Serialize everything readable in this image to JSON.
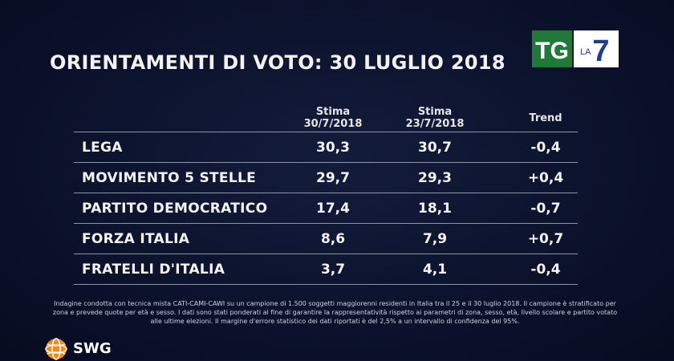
{
  "logo": {
    "tg": "TG",
    "la": "LA",
    "seven": "7"
  },
  "title": "ORIENTAMENTI DI VOTO: 30 LUGLIO 2018",
  "chart_data": {
    "type": "table",
    "title": "ORIENTAMENTI DI VOTO: 30 LUGLIO 2018",
    "columns": [
      {
        "line1": "Stima",
        "line2": "30/7/2018"
      },
      {
        "line1": "Stima",
        "line2": "23/7/2018"
      },
      {
        "line1": "Trend",
        "line2": ""
      }
    ],
    "rows": [
      {
        "party": "LEGA",
        "v1": "30,3",
        "v2": "30,7",
        "trend": "-0,4"
      },
      {
        "party": "MOVIMENTO 5 STELLE",
        "v1": "29,7",
        "v2": "29,3",
        "trend": "+0,4"
      },
      {
        "party": "PARTITO DEMOCRATICO",
        "v1": "17,4",
        "v2": "18,1",
        "trend": "-0,7"
      },
      {
        "party": "FORZA ITALIA",
        "v1": "8,6",
        "v2": "7,9",
        "trend": "+0,7"
      },
      {
        "party": "FRATELLI D'ITALIA",
        "v1": "3,7",
        "v2": "4,1",
        "trend": "-0,4"
      }
    ]
  },
  "note": "Indagine condotta con tecnica mista CATI-CAMI-CAWI su un campione di 1.500 soggetti maggiorenni residenti in Italia tra il 25 e il 30 luglio 2018. Il campione è stratificato per zona e prevede quote per età e sesso. I dati sono stati ponderati al fine di garantire la rappresentatività rispetto ai parametri di zona, sesso, età, livello scolare e partito votato alle ultime elezioni. Il margine d'errore statistico dei dati riportati è del 2,5% a un intervallo di confidenza del 95%.",
  "brand": "SWG",
  "colors": {
    "background": "#0a1029",
    "tg_green": "#1f7a3a",
    "la7_blue": "#1b3f8f",
    "swg_orange": "#f08a1c"
  }
}
